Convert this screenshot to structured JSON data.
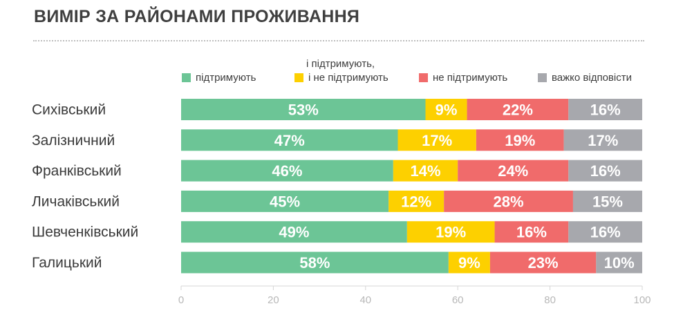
{
  "title": "ВИМІР ЗА РАЙОНАМИ ПРОЖИВАННЯ",
  "legend": [
    {
      "label": "підтримують",
      "color": "#6cc596"
    },
    {
      "label_line1": "і підтримують,",
      "label": "і не підтримують",
      "color": "#fdd000"
    },
    {
      "label": "не підтримують",
      "color": "#f06b6b"
    },
    {
      "label": "важко відповісти",
      "color": "#a7a8ad"
    }
  ],
  "chart_data": {
    "type": "bar",
    "orientation": "horizontal",
    "stacked": true,
    "title": "ВИМІР ЗА РАЙОНАМИ ПРОЖИВАННЯ",
    "categories": [
      "Сихівський",
      "Залізничний",
      "Франківський",
      "Личаківський",
      "Шевченківський",
      "Галицький"
    ],
    "series": [
      {
        "name": "підтримують",
        "color": "#6cc596",
        "values": [
          53,
          47,
          46,
          45,
          49,
          58
        ]
      },
      {
        "name": "і підтримують, і не підтримують",
        "color": "#fdd000",
        "values": [
          9,
          17,
          14,
          12,
          19,
          9
        ]
      },
      {
        "name": "не підтримують",
        "color": "#f06b6b",
        "values": [
          22,
          19,
          24,
          28,
          16,
          23
        ]
      },
      {
        "name": "важко відповісти",
        "color": "#a7a8ad",
        "values": [
          16,
          17,
          16,
          15,
          16,
          10
        ]
      }
    ],
    "data_labels": [
      [
        "53%",
        "9%",
        "22%",
        "16%"
      ],
      [
        "47%",
        "17%",
        "19%",
        "17%"
      ],
      [
        "46%",
        "14%",
        "24%",
        "16%"
      ],
      [
        "45%",
        "12%",
        "28%",
        "15%"
      ],
      [
        "49%",
        "19%",
        "16%",
        "16%"
      ],
      [
        "58%",
        "9%",
        "23%",
        "10%"
      ]
    ],
    "xlim": [
      0,
      100
    ],
    "xticks": [
      "0",
      "20",
      "40",
      "60",
      "80",
      "100"
    ],
    "legend_position": "top",
    "grid": false
  }
}
